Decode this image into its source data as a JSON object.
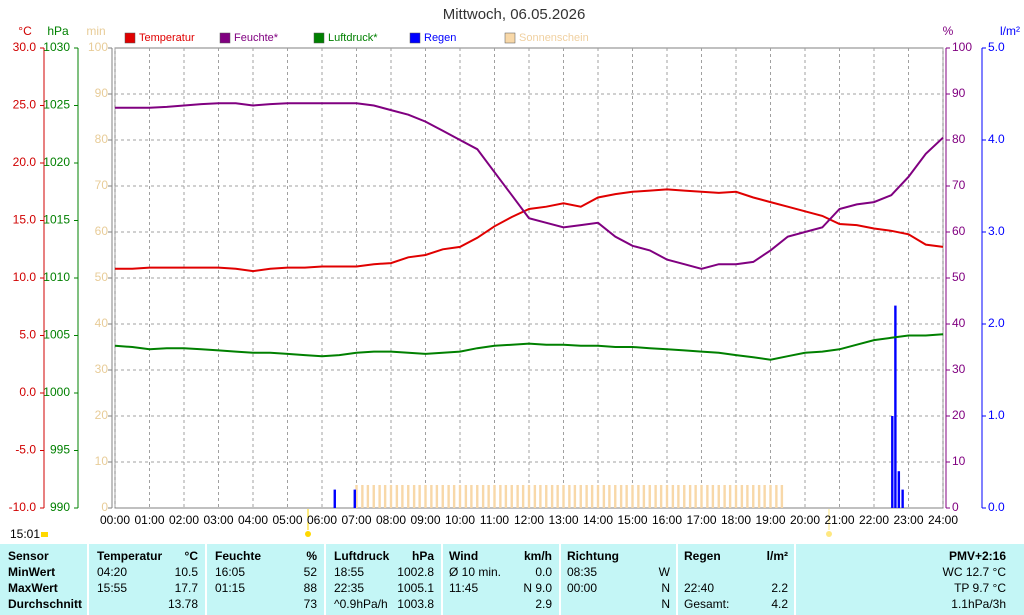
{
  "chart_data": {
    "type": "line",
    "title": "Mittwoch, 06.05.2026",
    "time_label": "15:01",
    "grid": true,
    "xlim": [
      0,
      24
    ],
    "xticks": [
      {
        "value": 0,
        "label": "00:00"
      },
      {
        "value": 1,
        "label": "01:00"
      },
      {
        "value": 2,
        "label": "02:00"
      },
      {
        "value": 3,
        "label": "03:00"
      },
      {
        "value": 4,
        "label": "04:00"
      },
      {
        "value": 5,
        "label": "05:00"
      },
      {
        "value": 6,
        "label": "06:00"
      },
      {
        "value": 7,
        "label": "07:00"
      },
      {
        "value": 8,
        "label": "08:00"
      },
      {
        "value": 9,
        "label": "09:00"
      },
      {
        "value": 10,
        "label": "10:00"
      },
      {
        "value": 11,
        "label": "11:00"
      },
      {
        "value": 12,
        "label": "12:00"
      },
      {
        "value": 13,
        "label": "13:00"
      },
      {
        "value": 14,
        "label": "14:00"
      },
      {
        "value": 15,
        "label": "15:00"
      },
      {
        "value": 16,
        "label": "16:00"
      },
      {
        "value": 17,
        "label": "17:00"
      },
      {
        "value": 18,
        "label": "18:00"
      },
      {
        "value": 19,
        "label": "19:00"
      },
      {
        "value": 20,
        "label": "20:00"
      },
      {
        "value": 21,
        "label": "21:00"
      },
      {
        "value": 22,
        "label": "22:00"
      },
      {
        "value": 23,
        "label": "23:00"
      },
      {
        "value": 24,
        "label": "24:00"
      }
    ],
    "axes": [
      {
        "id": "temp",
        "unit": "°C",
        "color": "#d00000",
        "side": "left",
        "lim": [
          -10,
          30
        ],
        "ticks": [
          {
            "value": -10,
            "label": "-10.0"
          },
          {
            "value": -5,
            "label": "-5.0"
          },
          {
            "value": 0,
            "label": "0.0"
          },
          {
            "value": 5,
            "label": "5.0"
          },
          {
            "value": 10,
            "label": "10.0"
          },
          {
            "value": 15,
            "label": "15.0"
          },
          {
            "value": 20,
            "label": "20.0"
          },
          {
            "value": 25,
            "label": "25.0"
          },
          {
            "value": 30,
            "label": "30.0"
          }
        ]
      },
      {
        "id": "press",
        "unit": "hPa",
        "color": "#008000",
        "side": "left",
        "lim": [
          990,
          1030
        ],
        "ticks": [
          990,
          995,
          1000,
          1005,
          1010,
          1015,
          1020,
          1025,
          1030
        ]
      },
      {
        "id": "sun",
        "unit": "min",
        "color": "#e8cc98",
        "side": "left",
        "lim": [
          0,
          100
        ],
        "ticks": [
          0,
          10,
          20,
          30,
          40,
          50,
          60,
          70,
          80,
          90,
          100
        ]
      },
      {
        "id": "hum",
        "unit": "%",
        "color": "#800080",
        "side": "right",
        "lim": [
          0,
          100
        ],
        "ticks": [
          0,
          10,
          20,
          30,
          40,
          50,
          60,
          70,
          80,
          90,
          100
        ]
      },
      {
        "id": "rain",
        "unit": "l/m²",
        "color": "#0000ff",
        "side": "right",
        "lim": [
          0,
          5
        ],
        "ticks": [
          {
            "value": 0,
            "label": "0.0"
          },
          {
            "value": 1,
            "label": "1.0"
          },
          {
            "value": 2,
            "label": "2.0"
          },
          {
            "value": 3,
            "label": "3.0"
          },
          {
            "value": 4,
            "label": "4.0"
          },
          {
            "value": 5,
            "label": "5.0"
          }
        ]
      }
    ],
    "series": [
      {
        "name": "Temperatur",
        "color": "#e00000",
        "axis": "temp",
        "kind": "line",
        "x": [
          0,
          0.5,
          1,
          1.5,
          2,
          2.5,
          3,
          3.5,
          4,
          4.5,
          5,
          5.5,
          6,
          6.5,
          7,
          7.5,
          8,
          8.5,
          9,
          9.5,
          10,
          10.5,
          11,
          11.5,
          12,
          12.5,
          13,
          13.5,
          14,
          14.5,
          15,
          15.5,
          16,
          16.5,
          17,
          17.5,
          18,
          18.5,
          19,
          19.5,
          20,
          20.5,
          21,
          21.5,
          22,
          22.5,
          23,
          23.5,
          24
        ],
        "values": [
          10.8,
          10.8,
          10.9,
          10.9,
          10.9,
          10.9,
          10.9,
          10.8,
          10.6,
          10.8,
          10.9,
          10.9,
          11.0,
          11.0,
          11.0,
          11.2,
          11.3,
          11.8,
          12.0,
          12.5,
          12.7,
          13.5,
          14.5,
          15.3,
          16.0,
          16.2,
          16.5,
          16.2,
          17.0,
          17.3,
          17.5,
          17.6,
          17.7,
          17.6,
          17.5,
          17.4,
          17.5,
          17.0,
          16.6,
          16.2,
          15.8,
          15.4,
          14.7,
          14.6,
          14.3,
          14.1,
          13.8,
          12.9,
          12.7
        ]
      },
      {
        "name": "Feuchte*",
        "color": "#800080",
        "axis": "hum",
        "kind": "line",
        "x": [
          0,
          0.5,
          1,
          1.5,
          2,
          2.5,
          3,
          3.5,
          4,
          4.5,
          5,
          5.5,
          6,
          6.5,
          7,
          7.5,
          8,
          8.5,
          9,
          9.5,
          10,
          10.5,
          11,
          11.5,
          12,
          12.5,
          13,
          13.5,
          14,
          14.5,
          15,
          15.5,
          16,
          16.5,
          17,
          17.5,
          18,
          18.5,
          19,
          19.5,
          20,
          20.5,
          21,
          21.5,
          22,
          22.5,
          23,
          23.5,
          24
        ],
        "values": [
          87,
          87,
          87,
          87.2,
          87.5,
          87.8,
          88,
          88,
          87.5,
          87.8,
          88,
          88,
          88,
          88,
          88,
          87.5,
          86.5,
          85.5,
          84,
          82,
          80,
          78,
          73,
          68,
          63,
          62,
          61,
          61.5,
          62,
          59,
          57,
          56,
          54,
          53,
          52,
          53,
          53,
          53.5,
          56,
          59,
          60,
          61,
          65,
          66,
          66.5,
          68,
          72,
          77,
          80.5
        ]
      },
      {
        "name": "Luftdruck*",
        "color": "#008000",
        "axis": "press",
        "kind": "line",
        "x": [
          0,
          0.5,
          1,
          1.5,
          2,
          2.5,
          3,
          3.5,
          4,
          4.5,
          5,
          5.5,
          6,
          6.5,
          7,
          7.5,
          8,
          8.5,
          9,
          9.5,
          10,
          10.5,
          11,
          11.5,
          12,
          12.5,
          13,
          13.5,
          14,
          14.5,
          15,
          15.5,
          16,
          16.5,
          17,
          17.5,
          18,
          18.5,
          19,
          19.5,
          20,
          20.5,
          21,
          21.5,
          22,
          22.5,
          23,
          23.5,
          24
        ],
        "values": [
          1004.1,
          1004.0,
          1003.8,
          1003.9,
          1003.9,
          1003.8,
          1003.7,
          1003.6,
          1003.5,
          1003.5,
          1003.4,
          1003.3,
          1003.2,
          1003.3,
          1003.5,
          1003.6,
          1003.6,
          1003.5,
          1003.4,
          1003.5,
          1003.6,
          1003.9,
          1004.1,
          1004.2,
          1004.3,
          1004.2,
          1004.2,
          1004.1,
          1004.1,
          1004.0,
          1004.0,
          1003.9,
          1003.8,
          1003.7,
          1003.6,
          1003.5,
          1003.3,
          1003.1,
          1002.9,
          1003.2,
          1003.5,
          1003.6,
          1003.8,
          1004.2,
          1004.6,
          1004.8,
          1005.0,
          1005.0,
          1005.1
        ]
      },
      {
        "name": "Regen",
        "color": "#0000ff",
        "axis": "rain",
        "kind": "bar",
        "x": [
          6.37,
          6.95,
          22.53,
          22.62,
          22.72,
          22.83
        ],
        "values": [
          0.2,
          0.2,
          1.0,
          2.2,
          0.4,
          0.2
        ]
      },
      {
        "name": "Sonnenschein",
        "color": "#f8d8a8",
        "axis": "sun",
        "kind": "bar",
        "x": [
          7,
          7.17,
          7.33,
          7.5,
          7.67,
          7.83,
          8,
          8.17,
          8.33,
          8.5,
          8.67,
          8.83,
          9,
          9.17,
          9.33,
          9.5,
          9.67,
          9.83,
          10,
          10.17,
          10.33,
          10.5,
          10.67,
          10.83,
          11,
          11.17,
          11.33,
          11.5,
          11.67,
          11.83,
          12,
          12.17,
          12.33,
          12.5,
          12.67,
          12.83,
          13,
          13.17,
          13.33,
          13.5,
          13.67,
          13.83,
          14,
          14.17,
          14.33,
          14.5,
          14.67,
          14.83,
          15,
          15.17,
          15.33,
          15.5,
          15.67,
          15.83,
          16,
          16.17,
          16.33,
          16.5,
          16.67,
          16.83,
          17,
          17.17,
          17.33,
          17.5,
          17.67,
          17.83,
          18,
          18.17,
          18.33,
          18.5,
          18.67,
          18.83,
          19,
          19.17,
          19.33
        ],
        "values": [
          5,
          5,
          5,
          5,
          5,
          5,
          5,
          5,
          5,
          5,
          5,
          5,
          5,
          5,
          5,
          5,
          5,
          5,
          5,
          5,
          5,
          5,
          5,
          5,
          5,
          5,
          5,
          5,
          5,
          5,
          5,
          5,
          5,
          5,
          5,
          5,
          5,
          5,
          5,
          5,
          5,
          5,
          5,
          5,
          5,
          5,
          5,
          5,
          5,
          5,
          5,
          5,
          5,
          5,
          5,
          5,
          5,
          5,
          5,
          5,
          5,
          5,
          5,
          5,
          5,
          5,
          5,
          5,
          5,
          5,
          5,
          5,
          5,
          5,
          5
        ]
      }
    ]
  },
  "table": {
    "rows": [
      {
        "label": "Sensor",
        "temp_time": "Temperatur",
        "temp": "°C",
        "hum_time": "Feuchte",
        "hum": "%",
        "press_time": "Luftdruck",
        "press": "hPa",
        "wind_time": "Wind",
        "wind": "km/h",
        "dir_time": "Richtung",
        "rain_time": "Regen",
        "rain": "l/m²",
        "pmv": "PMV+2:16"
      },
      {
        "label": "MinWert",
        "temp_time": "04:20",
        "temp": "10.5",
        "hum_time": "16:05",
        "hum": "52",
        "press_time": "18:55",
        "press": "1002.8",
        "wind_time": "Ø 10 min.",
        "wind": "0.0",
        "dir_time": "08:35",
        "dir": "W",
        "pmv": "WC 12.7 °C"
      },
      {
        "label": "MaxWert",
        "temp_time": "15:55",
        "temp": "17.7",
        "hum_time": "01:15",
        "hum": "88",
        "press_time": "22:35",
        "press": "1005.1",
        "wind_time": "11:45",
        "wind": "N 9.0",
        "dir_time": "00:00",
        "dir": "N",
        "rain_time": "22:40",
        "rain": "2.2",
        "pmv": "TP 9.7 °C"
      },
      {
        "label": "Durchschnitt",
        "temp": "13.78",
        "hum": "73",
        "press_time": "^0.9hPa/h",
        "press": "1003.8",
        "wind": "2.9",
        "dir": "N",
        "rain_time": "Gesamt:",
        "rain": "4.2",
        "pmv": "1.1hPa/3h"
      }
    ]
  }
}
